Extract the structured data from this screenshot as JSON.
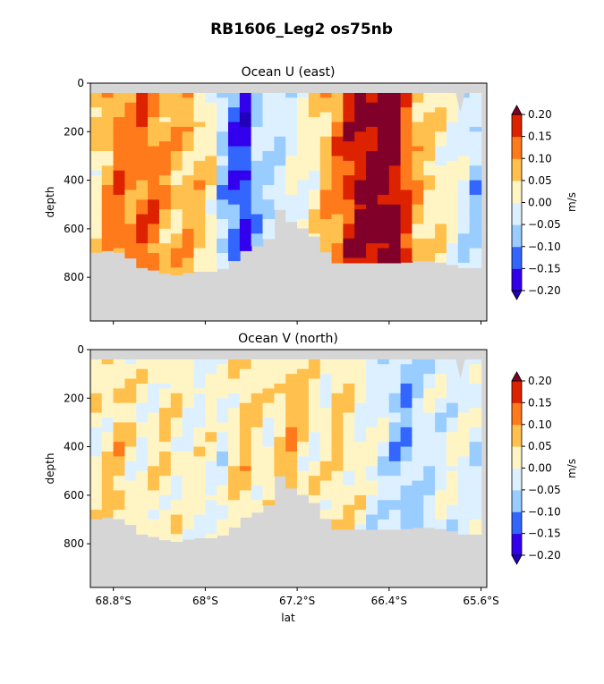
{
  "figure": {
    "title": "RB1606_Leg2 os75nb"
  },
  "colors": {
    "bins": [
      "#3300ee",
      "#3366ff",
      "#99ccff",
      "#ddf0ff",
      "#fff5c4",
      "#ffc04d",
      "#ff7a1a",
      "#dd2200"
    ],
    "under": "#2200bb",
    "over": "#80002a",
    "mask": "#d6d6d6"
  },
  "chart_data": [
    {
      "type": "heatmap",
      "title": "Ocean U (east)",
      "xlabel": "",
      "ylabel": "depth",
      "xlim": [
        -69.0,
        -65.55
      ],
      "ylim": [
        980,
        0
      ],
      "x_ticks": [
        -68.8,
        -68.0,
        -67.2,
        -66.4,
        -65.6
      ],
      "x_tick_labels": [
        "",
        "",
        "",
        "",
        ""
      ],
      "y_ticks": [
        0,
        200,
        400,
        600,
        800
      ],
      "y_tick_labels": [
        "0",
        "200",
        "400",
        "600",
        "800"
      ],
      "colorbar": {
        "label": "m/s",
        "levels": [
          -0.2,
          -0.15,
          -0.1,
          -0.05,
          0.0,
          0.05,
          0.1,
          0.15,
          0.2
        ],
        "tick_labels": [
          "−0.20",
          "−0.15",
          "−0.10",
          "−0.05",
          "0.00",
          "0.05",
          "0.10",
          "0.15",
          "0.20"
        ],
        "extend": "both"
      },
      "data_top_depth": 40,
      "bottom_profile": {
        "lat": [
          -69.0,
          -68.85,
          -68.7,
          -68.55,
          -68.45,
          -68.3,
          -68.2,
          -68.1,
          -68.0,
          -67.9,
          -67.82,
          -67.65,
          -67.55,
          -67.45,
          -67.35,
          -67.25,
          -67.1,
          -67.0,
          -66.9,
          -66.7,
          -66.5,
          -66.3,
          -66.1,
          -65.9,
          -65.75,
          -65.65,
          -65.6
        ],
        "depth": [
          700,
          690,
          700,
          760,
          770,
          790,
          790,
          770,
          780,
          770,
          760,
          690,
          670,
          640,
          520,
          570,
          610,
          650,
          740,
          740,
          740,
          740,
          730,
          740,
          760,
          760,
          800
        ]
      },
      "top_profile": {
        "lat": [
          -65.82,
          -65.78,
          -65.74,
          -65.7
        ],
        "depth": [
          40,
          120,
          40,
          40
        ]
      },
      "columns": {
        "lat": [
          -68.95,
          -68.85,
          -68.75,
          -68.65,
          -68.55,
          -68.45,
          -68.35,
          -68.25,
          -68.15,
          -68.05,
          -67.95,
          -67.85,
          -67.75,
          -67.65,
          -67.55,
          -67.45,
          -67.35,
          -67.25,
          -67.15,
          -67.05,
          -66.95,
          -66.85,
          -66.75,
          -66.65,
          -66.55,
          -66.45,
          -66.35,
          -66.25,
          -66.15,
          -66.05,
          -65.95,
          -65.85,
          -65.75,
          -65.65
        ],
        "value": [
          0.04,
          0.09,
          0.12,
          0.11,
          0.13,
          0.12,
          0.09,
          0.07,
          0.08,
          0.06,
          0.03,
          -0.06,
          -0.13,
          -0.16,
          -0.07,
          -0.04,
          -0.03,
          -0.01,
          0.01,
          0.03,
          0.08,
          0.12,
          0.17,
          0.2,
          0.22,
          0.23,
          0.21,
          0.15,
          0.08,
          0.05,
          0.03,
          0.01,
          -0.03,
          -0.06
        ]
      }
    },
    {
      "type": "heatmap",
      "title": "Ocean V (north)",
      "xlabel": "lat",
      "ylabel": "depth",
      "xlim": [
        -69.0,
        -65.55
      ],
      "ylim": [
        980,
        0
      ],
      "x_ticks": [
        -68.8,
        -68.0,
        -67.2,
        -66.4,
        -65.6
      ],
      "x_tick_labels": [
        "68.8°S",
        "68°S",
        "67.2°S",
        "66.4°S",
        "65.6°S"
      ],
      "y_ticks": [
        0,
        200,
        400,
        600,
        800
      ],
      "y_tick_labels": [
        "0",
        "200",
        "400",
        "600",
        "800"
      ],
      "colorbar": {
        "label": "m/s",
        "levels": [
          -0.2,
          -0.15,
          -0.1,
          -0.05,
          0.0,
          0.05,
          0.1,
          0.15,
          0.2
        ],
        "tick_labels": [
          "−0.20",
          "−0.15",
          "−0.10",
          "−0.05",
          "0.00",
          "0.05",
          "0.10",
          "0.15",
          "0.20"
        ],
        "extend": "both"
      },
      "data_top_depth": 40,
      "bottom_profile": {
        "lat": [
          -69.0,
          -68.85,
          -68.7,
          -68.55,
          -68.45,
          -68.3,
          -68.2,
          -68.1,
          -68.0,
          -67.9,
          -67.82,
          -67.65,
          -67.55,
          -67.45,
          -67.35,
          -67.25,
          -67.1,
          -67.0,
          -66.9,
          -66.7,
          -66.5,
          -66.3,
          -66.1,
          -65.9,
          -65.75,
          -65.65,
          -65.6
        ],
        "depth": [
          700,
          690,
          700,
          760,
          770,
          790,
          790,
          770,
          780,
          770,
          760,
          690,
          670,
          640,
          520,
          570,
          610,
          650,
          740,
          740,
          740,
          740,
          730,
          740,
          760,
          760,
          800
        ]
      },
      "top_profile": {
        "lat": [
          -65.82,
          -65.78,
          -65.74,
          -65.7
        ],
        "depth": [
          40,
          120,
          40,
          40
        ]
      },
      "columns": {
        "lat": [
          -68.95,
          -68.85,
          -68.75,
          -68.65,
          -68.55,
          -68.45,
          -68.35,
          -68.25,
          -68.15,
          -68.05,
          -67.95,
          -67.85,
          -67.75,
          -67.65,
          -67.55,
          -67.45,
          -67.35,
          -67.25,
          -67.15,
          -67.05,
          -66.95,
          -66.85,
          -66.75,
          -66.65,
          -66.55,
          -66.45,
          -66.35,
          -66.25,
          -66.15,
          -66.05,
          -65.95,
          -65.85,
          -65.75,
          -65.65
        ],
        "value": [
          0.02,
          0.04,
          0.06,
          0.03,
          0.01,
          0.02,
          0.04,
          0.02,
          0.0,
          0.01,
          0.01,
          -0.01,
          0.03,
          0.06,
          0.04,
          0.02,
          0.05,
          0.07,
          0.04,
          0.02,
          0.02,
          0.05,
          0.03,
          0.01,
          -0.01,
          -0.03,
          -0.06,
          -0.08,
          -0.05,
          -0.03,
          -0.02,
          -0.01,
          0.0,
          -0.02
        ]
      }
    }
  ]
}
